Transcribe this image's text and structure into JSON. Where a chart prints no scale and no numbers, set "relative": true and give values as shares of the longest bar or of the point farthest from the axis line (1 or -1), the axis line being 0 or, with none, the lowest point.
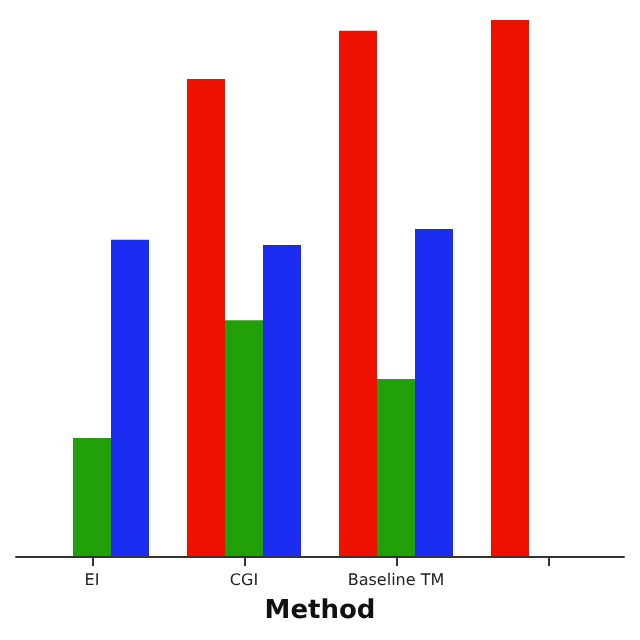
{
  "chart_data": {
    "type": "bar",
    "relative": true,
    "xlabel": "Method",
    "categories": [
      "EI",
      "CGI",
      "Baseline TM",
      null
    ],
    "series": [
      {
        "color": "#ee1100",
        "values": [
          null,
          0.89,
          0.98,
          1
        ]
      },
      {
        "color": "#22a00a",
        "values": [
          0.22,
          0.44,
          0.33,
          null
        ]
      },
      {
        "color": "#1a2cf0",
        "values": [
          0.59,
          0.58,
          0.61,
          null
        ]
      }
    ],
    "grid": false
  }
}
